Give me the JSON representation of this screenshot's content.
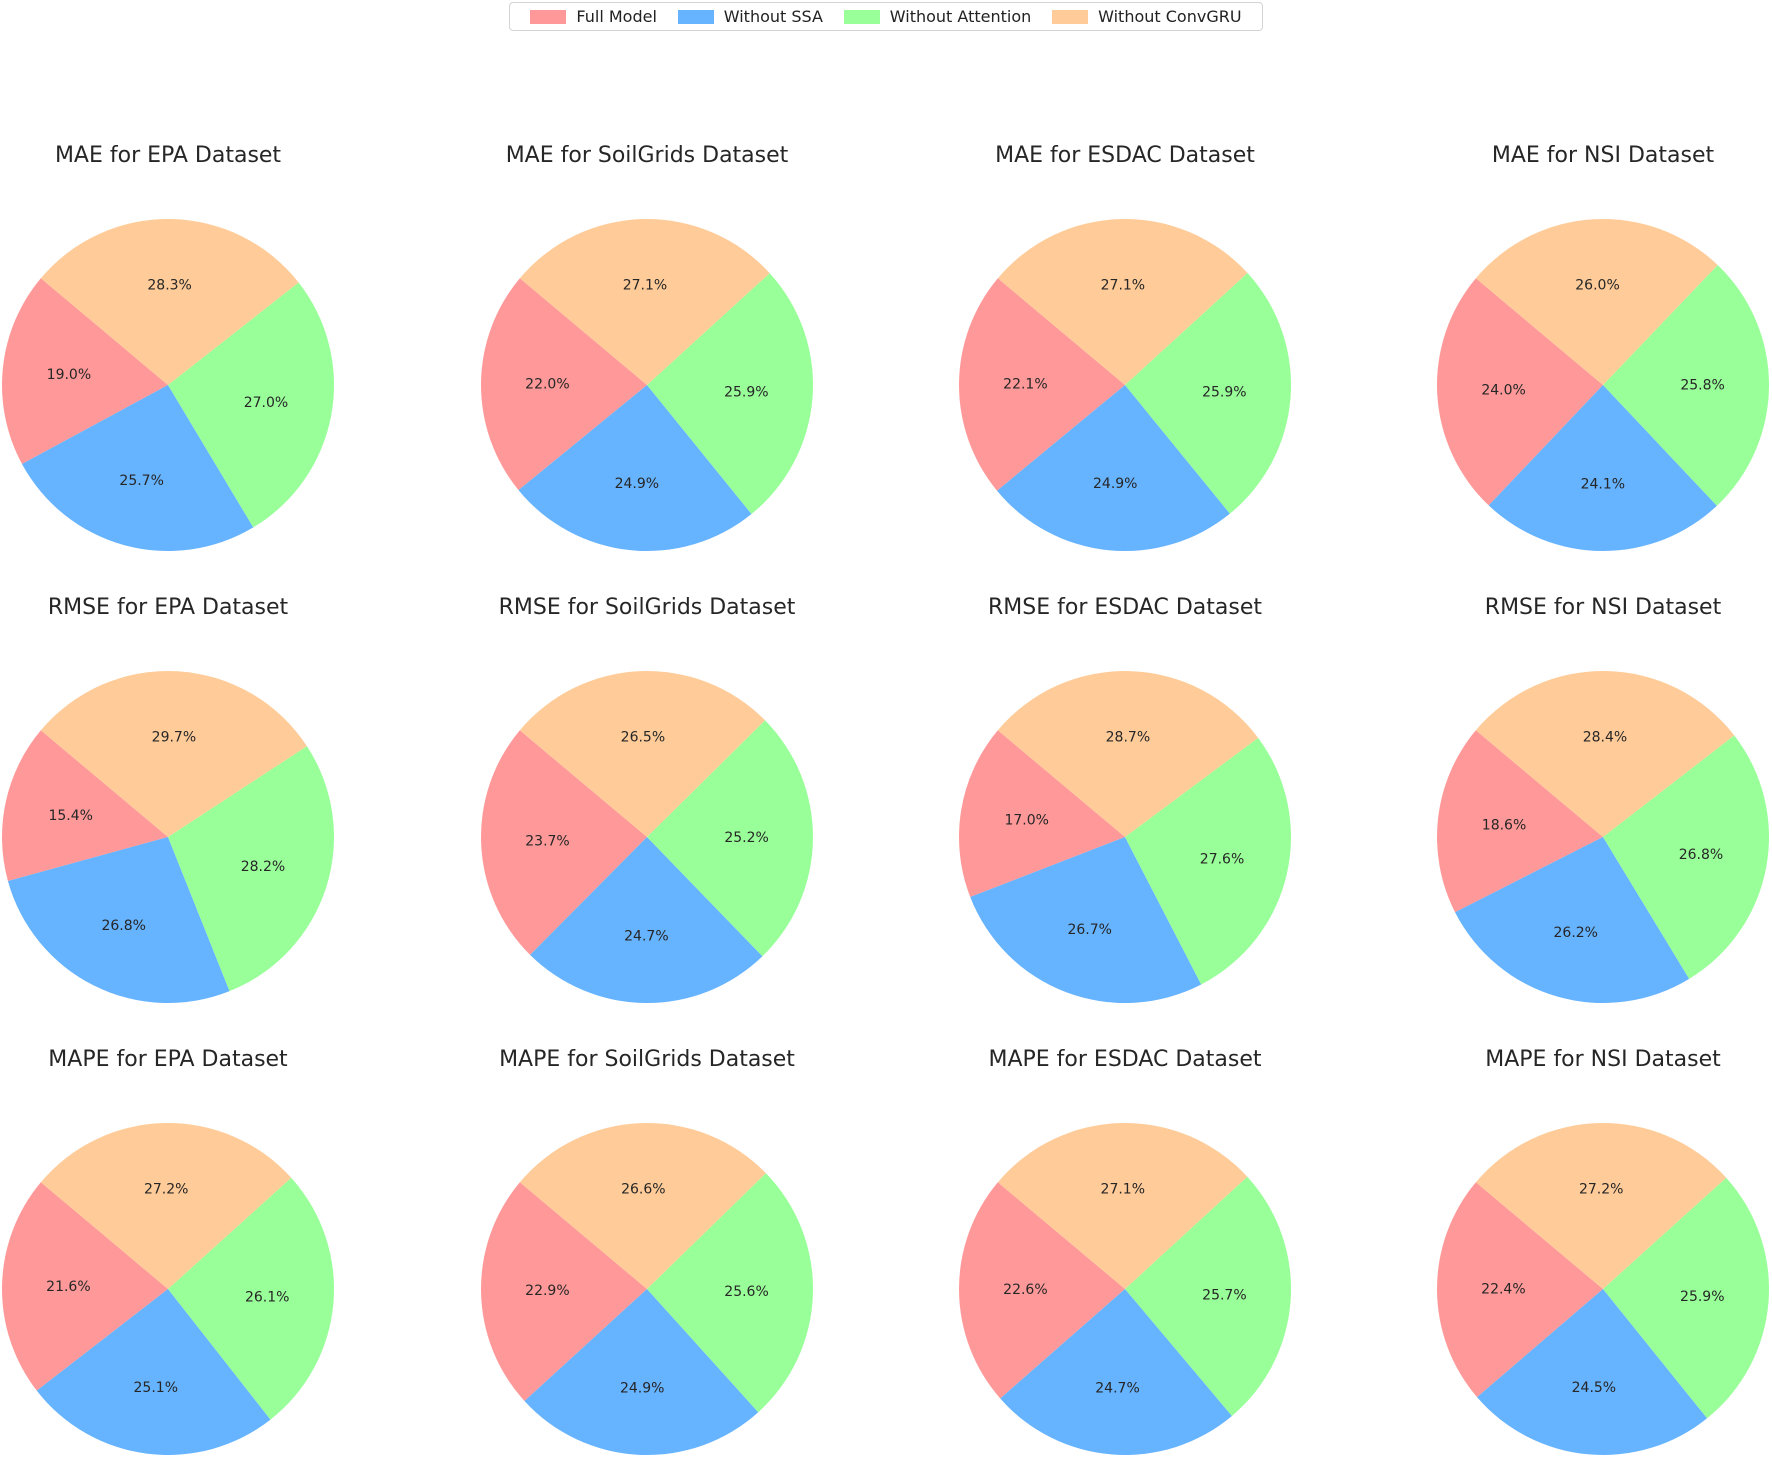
{
  "legend": {
    "items": [
      {
        "label": "Full Model",
        "color": "#ff9999"
      },
      {
        "label": "Without SSA",
        "color": "#66b3ff"
      },
      {
        "label": "Without Attention",
        "color": "#99ff99"
      },
      {
        "label": "Without ConvGRU",
        "color": "#ffcc99"
      }
    ]
  },
  "chart_data": [
    {
      "type": "pie",
      "title": "MAE for EPA Dataset",
      "labels": [
        "Full Model",
        "Without SSA",
        "Without Attention",
        "Without ConvGRU"
      ],
      "values": [
        19.0,
        25.7,
        27.0,
        28.3
      ],
      "display": [
        "19.0%",
        "25.7%",
        "27.0%",
        "28.3%"
      ]
    },
    {
      "type": "pie",
      "title": "MAE for SoilGrids Dataset",
      "labels": [
        "Full Model",
        "Without SSA",
        "Without Attention",
        "Without ConvGRU"
      ],
      "values": [
        22.0,
        24.9,
        25.9,
        27.1
      ],
      "display": [
        "22.0%",
        "24.9%",
        "25.9%",
        "27.1%"
      ]
    },
    {
      "type": "pie",
      "title": "MAE for ESDAC Dataset",
      "labels": [
        "Full Model",
        "Without SSA",
        "Without Attention",
        "Without ConvGRU"
      ],
      "values": [
        22.1,
        24.9,
        25.9,
        27.1
      ],
      "display": [
        "22.1%",
        "24.9%",
        "25.9%",
        "27.1%"
      ]
    },
    {
      "type": "pie",
      "title": "MAE for NSI Dataset",
      "labels": [
        "Full Model",
        "Without SSA",
        "Without Attention",
        "Without ConvGRU"
      ],
      "values": [
        24.0,
        24.1,
        25.8,
        26.0
      ],
      "display": [
        "24.0%",
        "24.1%",
        "25.8%",
        "26.0%"
      ]
    },
    {
      "type": "pie",
      "title": "RMSE for EPA Dataset",
      "labels": [
        "Full Model",
        "Without SSA",
        "Without Attention",
        "Without ConvGRU"
      ],
      "values": [
        15.4,
        26.8,
        28.2,
        29.7
      ],
      "display": [
        "15.4%",
        "26.8%",
        "28.2%",
        "29.7%"
      ]
    },
    {
      "type": "pie",
      "title": "RMSE for SoilGrids Dataset",
      "labels": [
        "Full Model",
        "Without SSA",
        "Without Attention",
        "Without ConvGRU"
      ],
      "values": [
        23.7,
        24.7,
        25.2,
        26.5
      ],
      "display": [
        "23.7%",
        "24.7%",
        "25.2%",
        "26.5%"
      ]
    },
    {
      "type": "pie",
      "title": "RMSE for ESDAC Dataset",
      "labels": [
        "Full Model",
        "Without SSA",
        "Without Attention",
        "Without ConvGRU"
      ],
      "values": [
        17.0,
        26.7,
        27.6,
        28.7
      ],
      "display": [
        "17.0%",
        "26.7%",
        "27.6%",
        "28.7%"
      ]
    },
    {
      "type": "pie",
      "title": "RMSE for NSI Dataset",
      "labels": [
        "Full Model",
        "Without SSA",
        "Without Attention",
        "Without ConvGRU"
      ],
      "values": [
        18.6,
        26.2,
        26.8,
        28.4
      ],
      "display": [
        "18.6%",
        "26.2%",
        "26.8%",
        "28.4%"
      ]
    },
    {
      "type": "pie",
      "title": "MAPE for EPA Dataset",
      "labels": [
        "Full Model",
        "Without SSA",
        "Without Attention",
        "Without ConvGRU"
      ],
      "values": [
        21.6,
        25.1,
        26.1,
        27.2
      ],
      "display": [
        "21.6%",
        "25.1%",
        "26.1%",
        "27.2%"
      ]
    },
    {
      "type": "pie",
      "title": "MAPE for SoilGrids Dataset",
      "labels": [
        "Full Model",
        "Without SSA",
        "Without Attention",
        "Without ConvGRU"
      ],
      "values": [
        22.9,
        24.9,
        25.6,
        26.6
      ],
      "display": [
        "22.9%",
        "24.9%",
        "25.6%",
        "26.6%"
      ]
    },
    {
      "type": "pie",
      "title": "MAPE for ESDAC Dataset",
      "labels": [
        "Full Model",
        "Without SSA",
        "Without Attention",
        "Without ConvGRU"
      ],
      "values": [
        22.6,
        24.7,
        25.7,
        27.1
      ],
      "display": [
        "22.6%",
        "24.7%",
        "25.7%",
        "27.1%"
      ]
    },
    {
      "type": "pie",
      "title": "MAPE for NSI Dataset",
      "labels": [
        "Full Model",
        "Without SSA",
        "Without Attention",
        "Without ConvGRU"
      ],
      "values": [
        22.4,
        24.5,
        25.9,
        27.2
      ],
      "display": [
        "22.4%",
        "24.5%",
        "25.9%",
        "27.2%"
      ]
    }
  ]
}
